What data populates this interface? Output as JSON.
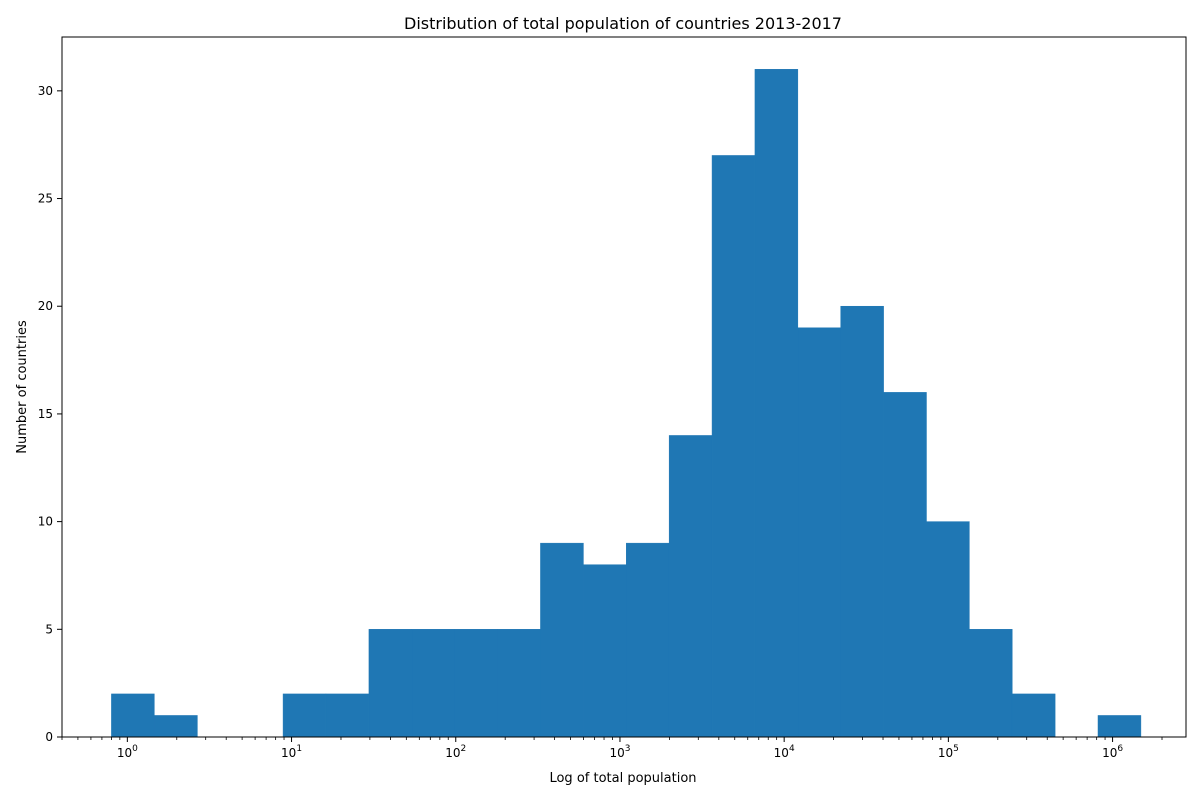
{
  "chart_data": {
    "type": "bar",
    "title": "Distribution of total population of countries 2013-2017",
    "xlabel": "Log of total population",
    "ylabel": "Number of countries",
    "x_scale": "log",
    "xlim": [
      0.4,
      2800000
    ],
    "ylim": [
      0,
      32.5
    ],
    "grid": false,
    "legend": "none",
    "bar_color": "#1f77b4",
    "bin_edges": [
      0.8,
      1.46,
      2.67,
      4.87,
      8.88,
      16.2,
      29.6,
      54.0,
      98.5,
      180,
      328,
      599,
      1093,
      1994,
      3638,
      6638,
      12111,
      22098,
      40318,
      73563,
      134219,
      244890,
      446818,
      815250,
      1487470
    ],
    "counts": [
      2,
      1,
      0,
      0,
      2,
      2,
      5,
      5,
      5,
      5,
      9,
      8,
      9,
      14,
      27,
      31,
      19,
      20,
      16,
      10,
      5,
      2,
      0,
      1
    ],
    "x_ticks": [
      {
        "value": 1,
        "base": "10",
        "exp": "0"
      },
      {
        "value": 10,
        "base": "10",
        "exp": "1"
      },
      {
        "value": 100,
        "base": "10",
        "exp": "2"
      },
      {
        "value": 1000,
        "base": "10",
        "exp": "3"
      },
      {
        "value": 10000,
        "base": "10",
        "exp": "4"
      },
      {
        "value": 100000,
        "base": "10",
        "exp": "5"
      },
      {
        "value": 1000000,
        "base": "10",
        "exp": "6"
      }
    ],
    "y_ticks": [
      {
        "value": 0,
        "label": "0"
      },
      {
        "value": 5,
        "label": "5"
      },
      {
        "value": 10,
        "label": "10"
      },
      {
        "value": 15,
        "label": "15"
      },
      {
        "value": 20,
        "label": "20"
      },
      {
        "value": 25,
        "label": "25"
      },
      {
        "value": 30,
        "label": "30"
      }
    ]
  }
}
